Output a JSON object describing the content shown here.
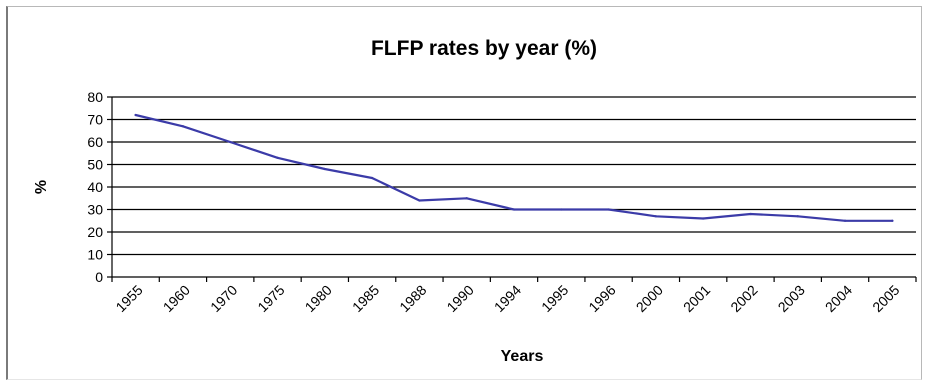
{
  "chart_data": {
    "type": "line",
    "title": "FLFP rates by year (%)",
    "xlabel": "Years",
    "ylabel": "%",
    "categories": [
      "1955",
      "1960",
      "1970",
      "1975",
      "1980",
      "1985",
      "1988",
      "1990",
      "1994",
      "1995",
      "1996",
      "2000",
      "2001",
      "2002",
      "2003",
      "2004",
      "2005"
    ],
    "series": [
      {
        "values": [
          72,
          67,
          60,
          53,
          48,
          44,
          34,
          35,
          30,
          30,
          30,
          27,
          26,
          28,
          27,
          25,
          25
        ]
      }
    ],
    "ylim": [
      0,
      80
    ],
    "yticks": [
      0,
      10,
      20,
      30,
      40,
      50,
      60,
      70,
      80
    ],
    "grid": true,
    "colors": {
      "line": "#3b3ba8",
      "grid": "#000000",
      "axis": "#000000"
    }
  }
}
